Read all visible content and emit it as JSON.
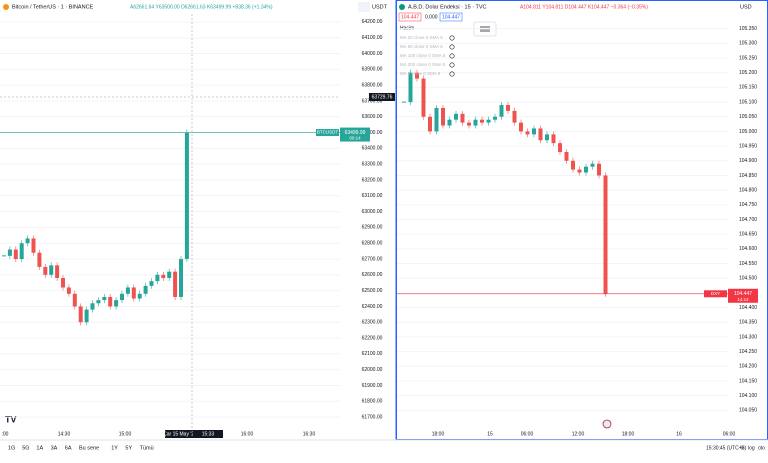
{
  "left": {
    "title": "Bitcoin / TetherUS · 1 · BINANCE",
    "ohlc": "A62661.64 Y63500.00 D62661.63 K63499.99 +838.36 (+1.34%)",
    "currency": "USDT",
    "crosshair_price": "63729.76",
    "symbol_tag": "BTCUSDT",
    "last_price": "63499.99",
    "countdown": "00:14",
    "ylim": [
      61650,
      64250
    ],
    "yticks": [
      {
        "value": 64200,
        "label": "64200.00"
      },
      {
        "value": 64100,
        "label": "64100.00"
      },
      {
        "value": 64000,
        "label": "64000.00"
      },
      {
        "value": 63900,
        "label": "63900.00"
      },
      {
        "value": 63800,
        "label": "63800.00"
      },
      {
        "value": 63700,
        "label": "63700.00"
      },
      {
        "value": 63600,
        "label": "63600.00"
      },
      {
        "value": 63500,
        "label": "63500.00"
      },
      {
        "value": 63400,
        "label": "63400.00"
      },
      {
        "value": 63300,
        "label": "63300.00"
      },
      {
        "value": 63200,
        "label": "63200.00"
      },
      {
        "value": 63100,
        "label": "63100.00"
      },
      {
        "value": 63000,
        "label": "63000.00"
      },
      {
        "value": 62900,
        "label": "62900.00"
      },
      {
        "value": 62800,
        "label": "62800.00"
      },
      {
        "value": 62700,
        "label": "62700.00"
      },
      {
        "value": 62600,
        "label": "62600.00"
      },
      {
        "value": 62500,
        "label": "62500.00"
      },
      {
        "value": 62400,
        "label": "62400.00"
      },
      {
        "value": 62300,
        "label": "62300.00"
      },
      {
        "value": 62200,
        "label": "62200.00"
      },
      {
        "value": 62100,
        "label": "62100.00"
      },
      {
        "value": 62000,
        "label": "62000.00"
      },
      {
        "value": 61900,
        "label": "61900.00"
      },
      {
        "value": 61800,
        "label": "61800.00"
      },
      {
        "value": 61700,
        "label": "61700.00"
      }
    ],
    "xticks": [
      ":00",
      "14:30",
      "15:00",
      "Çar 15 May '24",
      "15:33",
      "16:00",
      "16:30"
    ],
    "closes": [
      62720,
      62760,
      62700,
      62800,
      62830,
      62740,
      62650,
      62600,
      62660,
      62580,
      62520,
      62480,
      62400,
      62300,
      62380,
      62420,
      62440,
      62460,
      62400,
      62440,
      62480,
      62520,
      62450,
      62480,
      62530,
      62560,
      62600,
      62580,
      62620,
      62460,
      62700,
      63499.99
    ]
  },
  "right": {
    "title": "A.B.D. Dolar Endeksi · 15 · TVC",
    "ohlc": "A104.811 Y104.811 D104.447 K104.447 −0.364 (−0.35%)",
    "currency": "USD",
    "bid": "104.447",
    "spread": "0.000",
    "ask": "104.447",
    "volume": "Hacim",
    "indicators": [
      "MA 20 close 0 SMA 5",
      "MA 50 close 0 SMA 5",
      "MA 100 close 0 SMA 5",
      "MA 200 close 0 SMA 5",
      "MA 9 close 0 SMA 5"
    ],
    "symbol_tag": "DXY",
    "last_price": "104.447",
    "countdown": "14:14",
    "ylim": [
      104.0,
      105.4
    ],
    "yticks": [
      {
        "value": 105.35,
        "label": "105.350"
      },
      {
        "value": 105.3,
        "label": "105.300"
      },
      {
        "value": 105.25,
        "label": "105.250"
      },
      {
        "value": 105.2,
        "label": "105.200"
      },
      {
        "value": 105.15,
        "label": "105.150"
      },
      {
        "value": 105.1,
        "label": "105.100"
      },
      {
        "value": 105.05,
        "label": "105.050"
      },
      {
        "value": 105.0,
        "label": "105.000"
      },
      {
        "value": 104.95,
        "label": "104.950"
      },
      {
        "value": 104.9,
        "label": "104.900"
      },
      {
        "value": 104.85,
        "label": "104.850"
      },
      {
        "value": 104.8,
        "label": "104.800"
      },
      {
        "value": 104.75,
        "label": "104.750"
      },
      {
        "value": 104.7,
        "label": "104.700"
      },
      {
        "value": 104.65,
        "label": "104.650"
      },
      {
        "value": 104.6,
        "label": "104.600"
      },
      {
        "value": 104.55,
        "label": "104.550"
      },
      {
        "value": 104.5,
        "label": "104.500"
      },
      {
        "value": 104.45,
        "label": "104.450"
      },
      {
        "value": 104.4,
        "label": "104.400"
      },
      {
        "value": 104.35,
        "label": "104.350"
      },
      {
        "value": 104.3,
        "label": "104.300"
      },
      {
        "value": 104.25,
        "label": "104.250"
      },
      {
        "value": 104.2,
        "label": "104.200"
      },
      {
        "value": 104.15,
        "label": "104.150"
      },
      {
        "value": 104.1,
        "label": "104.100"
      },
      {
        "value": 104.05,
        "label": "104.050"
      }
    ],
    "xticks": [
      "18:00",
      "15",
      "06:00",
      "12:00",
      "18:00",
      "16",
      "06:00"
    ],
    "closes": [
      105.1,
      105.2,
      105.18,
      105.05,
      105.0,
      105.08,
      105.02,
      105.04,
      105.06,
      105.03,
      105.02,
      105.04,
      105.03,
      105.04,
      105.05,
      105.09,
      105.07,
      105.03,
      105.0,
      104.99,
      105.01,
      104.97,
      104.99,
      104.96,
      104.93,
      104.9,
      104.87,
      104.86,
      104.88,
      104.89,
      104.85,
      104.447
    ]
  },
  "toolbar": {
    "ranges": [
      "1G",
      "5G",
      "1A",
      "3A",
      "6A",
      "Bu sene",
      "1Y",
      "5Y",
      "Tümü"
    ],
    "clock": "15:30:45 (UTC+3)",
    "percent": "%",
    "log": "log",
    "auto": "oto"
  }
}
